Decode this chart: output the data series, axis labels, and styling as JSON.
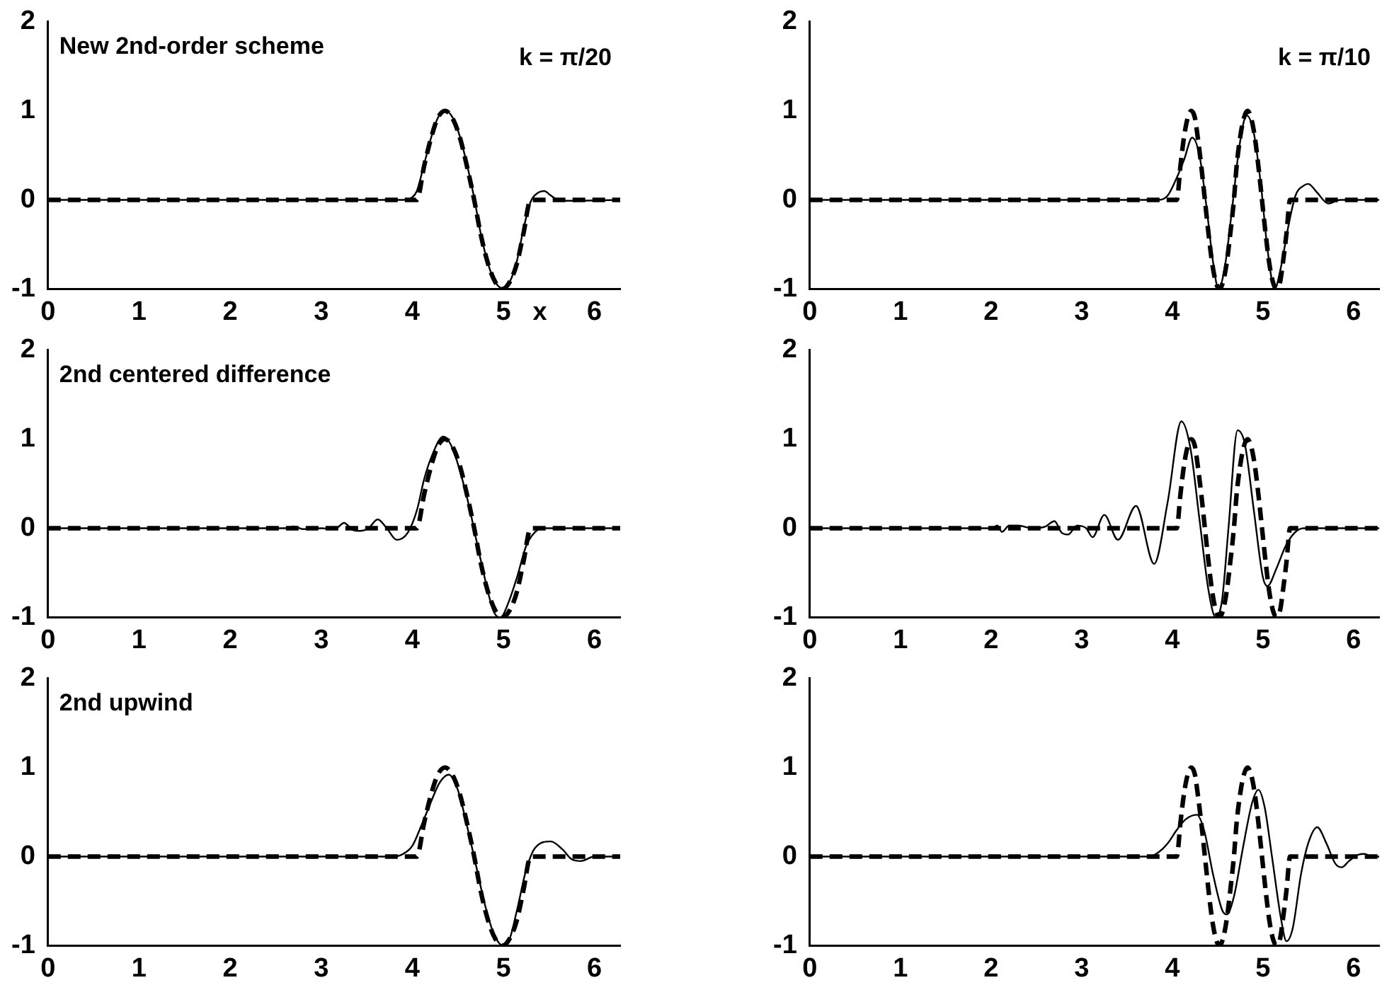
{
  "chart_data": [
    {
      "type": "line",
      "title": "New 2nd-order scheme",
      "xlabel": "x",
      "annotations": [
        "k = π/20"
      ],
      "xlim": [
        0,
        6.283
      ],
      "ylim": [
        -1,
        2
      ],
      "xticks": [
        0,
        1,
        2,
        3,
        4,
        5,
        6
      ],
      "yticks": [
        -1,
        0,
        1,
        2
      ],
      "marker": "none",
      "series": [
        {
          "color": "#000000",
          "line_style": "solid",
          "x": [
            0,
            3.9,
            4.0,
            4.05,
            4.13,
            4.21,
            4.28,
            4.36,
            4.44,
            4.52,
            4.6,
            4.68,
            4.75,
            4.83,
            4.91,
            4.99,
            5.07,
            5.15,
            5.22,
            5.3,
            5.38,
            5.45,
            5.52,
            5.6,
            5.7,
            6.283
          ],
          "values": [
            0,
            0,
            0.03,
            0.1,
            0.4,
            0.71,
            0.92,
            1,
            0.93,
            0.72,
            0.4,
            0.02,
            -0.37,
            -0.71,
            -0.92,
            -0.99,
            -0.92,
            -0.68,
            -0.33,
            -0.02,
            0.08,
            0.1,
            0.05,
            0,
            -0.01,
            0
          ]
        },
        {
          "color": "#000000",
          "line_style": "dashed",
          "x": [
            0,
            4.05,
            4.13,
            4.21,
            4.28,
            4.36,
            4.44,
            4.52,
            4.6,
            4.68,
            4.75,
            4.83,
            4.91,
            4.99,
            5.07,
            5.15,
            5.22,
            5.3,
            6.283
          ],
          "values": [
            0,
            0,
            0.38,
            0.71,
            0.92,
            1,
            0.92,
            0.71,
            0.38,
            0,
            -0.38,
            -0.71,
            -0.92,
            -1,
            -0.92,
            -0.71,
            -0.38,
            0,
            0
          ]
        }
      ]
    },
    {
      "type": "line",
      "annotations": [
        "k = π/10"
      ],
      "xlim": [
        0,
        6.283
      ],
      "ylim": [
        -1,
        2
      ],
      "xticks": [
        0,
        1,
        2,
        3,
        4,
        5,
        6
      ],
      "yticks": [
        -1,
        0,
        1,
        2
      ],
      "marker": "none",
      "series": [
        {
          "color": "#000000",
          "line_style": "solid",
          "x": [
            0,
            3.85,
            3.95,
            4.05,
            4.13,
            4.22,
            4.3,
            4.38,
            4.45,
            4.51,
            4.58,
            4.66,
            4.74,
            4.82,
            4.9,
            4.98,
            5.05,
            5.13,
            5.2,
            5.28,
            5.36,
            5.45,
            5.5,
            5.6,
            5.72,
            5.85,
            6.283
          ],
          "values": [
            0,
            0,
            0.05,
            0.25,
            0.45,
            0.7,
            0.5,
            -0.1,
            -0.7,
            -1,
            -0.75,
            -0.1,
            0.6,
            0.95,
            0.75,
            0.15,
            -0.55,
            -1,
            -0.75,
            -0.3,
            0.05,
            0.16,
            0.18,
            0.08,
            -0.04,
            0,
            0
          ]
        },
        {
          "color": "#000000",
          "line_style": "dashed",
          "x": [
            0,
            4.05,
            4.09,
            4.13,
            4.17,
            4.21,
            4.25,
            4.28,
            4.32,
            4.36,
            4.4,
            4.44,
            4.48,
            4.52,
            4.56,
            4.6,
            4.64,
            4.68,
            4.71,
            4.75,
            4.79,
            4.83,
            4.87,
            4.91,
            4.95,
            4.99,
            5.03,
            5.07,
            5.11,
            5.15,
            5.19,
            5.22,
            5.26,
            5.3,
            6.283
          ],
          "values": [
            0,
            0,
            0.38,
            0.71,
            0.92,
            1,
            0.92,
            0.71,
            0.38,
            0,
            -0.38,
            -0.71,
            -0.92,
            -1,
            -0.92,
            -0.71,
            -0.38,
            0,
            0.38,
            0.71,
            0.92,
            1,
            0.92,
            0.71,
            0.38,
            0,
            -0.38,
            -0.71,
            -0.92,
            -1,
            -0.92,
            -0.71,
            -0.38,
            0,
            0
          ]
        }
      ]
    },
    {
      "type": "line",
      "title": "2nd centered difference",
      "xlim": [
        0,
        6.283
      ],
      "ylim": [
        -1,
        2
      ],
      "xticks": [
        0,
        1,
        2,
        3,
        4,
        5,
        6
      ],
      "yticks": [
        -1,
        0,
        1,
        2
      ],
      "marker": "none",
      "series": [
        {
          "color": "#000000",
          "line_style": "solid",
          "x": [
            0,
            2.6,
            2.7,
            2.8,
            3.0,
            3.15,
            3.25,
            3.35,
            3.42,
            3.52,
            3.62,
            3.72,
            3.83,
            3.95,
            4.05,
            4.13,
            4.21,
            4.34,
            4.44,
            4.6,
            4.75,
            4.9,
            4.97,
            5.05,
            5.15,
            5.25,
            5.35,
            5.45,
            6.283
          ],
          "values": [
            0,
            0,
            0.02,
            -0.01,
            0,
            -0.01,
            0.06,
            -0.02,
            -0.03,
            0,
            0.1,
            0,
            -0.13,
            -0.05,
            0.2,
            0.55,
            0.8,
            1.03,
            0.9,
            0.35,
            -0.35,
            -0.95,
            -1,
            -0.85,
            -0.55,
            -0.2,
            -0.04,
            0,
            0
          ]
        },
        {
          "color": "#000000",
          "line_style": "dashed",
          "x": [
            0,
            4.05,
            4.13,
            4.21,
            4.28,
            4.36,
            4.44,
            4.52,
            4.6,
            4.68,
            4.75,
            4.83,
            4.91,
            4.99,
            5.07,
            5.15,
            5.22,
            5.3,
            6.283
          ],
          "values": [
            0,
            0,
            0.38,
            0.71,
            0.92,
            1,
            0.92,
            0.71,
            0.38,
            0,
            -0.38,
            -0.71,
            -0.92,
            -1,
            -0.92,
            -0.71,
            -0.38,
            0,
            0
          ]
        }
      ]
    },
    {
      "type": "line",
      "xlim": [
        0,
        6.283
      ],
      "ylim": [
        -1,
        2
      ],
      "xticks": [
        0,
        1,
        2,
        3,
        4,
        5,
        6
      ],
      "yticks": [
        -1,
        0,
        1,
        2
      ],
      "marker": "none",
      "series": [
        {
          "color": "#000000",
          "line_style": "solid",
          "x": [
            0,
            2.0,
            2.07,
            2.12,
            2.2,
            2.3,
            2.45,
            2.6,
            2.7,
            2.78,
            2.85,
            2.95,
            3.05,
            3.12,
            3.25,
            3.4,
            3.6,
            3.8,
            3.95,
            4.1,
            4.2,
            4.3,
            4.4,
            4.48,
            4.55,
            4.62,
            4.72,
            4.8,
            4.9,
            5.0,
            5.05,
            5.15,
            5.25,
            5.35,
            5.45,
            6.283
          ],
          "values": [
            0,
            0,
            0.03,
            -0.04,
            0.03,
            0.03,
            0,
            0.02,
            0.08,
            -0.05,
            -0.07,
            0.03,
            0,
            -0.1,
            0.15,
            -0.13,
            0.25,
            -0.4,
            0.3,
            1.2,
            0.9,
            0.1,
            -0.7,
            -1,
            -0.8,
            0,
            1.1,
            0.95,
            0.2,
            -0.55,
            -0.65,
            -0.45,
            -0.2,
            -0.05,
            0,
            0
          ]
        },
        {
          "color": "#000000",
          "line_style": "dashed",
          "x": [
            0,
            4.05,
            4.09,
            4.13,
            4.17,
            4.21,
            4.25,
            4.28,
            4.32,
            4.36,
            4.4,
            4.44,
            4.48,
            4.52,
            4.56,
            4.6,
            4.64,
            4.68,
            4.71,
            4.75,
            4.79,
            4.83,
            4.87,
            4.91,
            4.95,
            4.99,
            5.03,
            5.07,
            5.11,
            5.15,
            5.19,
            5.22,
            5.26,
            5.3,
            6.283
          ],
          "values": [
            0,
            0,
            0.38,
            0.71,
            0.92,
            1,
            0.92,
            0.71,
            0.38,
            0,
            -0.38,
            -0.71,
            -0.92,
            -1,
            -0.92,
            -0.71,
            -0.38,
            0,
            0.38,
            0.71,
            0.92,
            1,
            0.92,
            0.71,
            0.38,
            0,
            -0.38,
            -0.71,
            -0.92,
            -1,
            -0.92,
            -0.71,
            -0.38,
            0,
            0
          ]
        }
      ]
    },
    {
      "type": "line",
      "title": "2nd upwind",
      "xlim": [
        0,
        6.283
      ],
      "ylim": [
        -1,
        2
      ],
      "xticks": [
        0,
        1,
        2,
        3,
        4,
        5,
        6
      ],
      "yticks": [
        -1,
        0,
        1,
        2
      ],
      "marker": "none",
      "series": [
        {
          "color": "#000000",
          "line_style": "solid",
          "x": [
            0,
            3.8,
            3.9,
            4.0,
            4.1,
            4.2,
            4.3,
            4.4,
            4.5,
            4.6,
            4.7,
            4.8,
            4.9,
            5.0,
            5.07,
            5.15,
            5.25,
            5.35,
            5.52,
            5.65,
            5.75,
            5.85,
            6.0,
            6.283
          ],
          "values": [
            0,
            0,
            0.03,
            0.12,
            0.35,
            0.6,
            0.83,
            0.92,
            0.75,
            0.35,
            -0.1,
            -0.55,
            -0.88,
            -1,
            -0.92,
            -0.6,
            -0.15,
            0.1,
            0.17,
            0.08,
            -0.03,
            -0.05,
            0,
            0
          ]
        },
        {
          "color": "#000000",
          "line_style": "dashed",
          "x": [
            0,
            4.05,
            4.13,
            4.21,
            4.28,
            4.36,
            4.44,
            4.52,
            4.6,
            4.68,
            4.75,
            4.83,
            4.91,
            4.99,
            5.07,
            5.15,
            5.22,
            5.3,
            6.283
          ],
          "values": [
            0,
            0,
            0.38,
            0.71,
            0.92,
            1,
            0.92,
            0.71,
            0.38,
            0,
            -0.38,
            -0.71,
            -0.92,
            -1,
            -0.92,
            -0.71,
            -0.38,
            0,
            0
          ]
        }
      ]
    },
    {
      "type": "line",
      "xlim": [
        0,
        6.283
      ],
      "ylim": [
        -1,
        2
      ],
      "xticks": [
        0,
        1,
        2,
        3,
        4,
        5,
        6
      ],
      "yticks": [
        -1,
        0,
        1,
        2
      ],
      "marker": "none",
      "series": [
        {
          "color": "#000000",
          "line_style": "solid",
          "x": [
            0,
            3.75,
            3.85,
            3.95,
            4.05,
            4.15,
            4.27,
            4.35,
            4.45,
            4.55,
            4.6,
            4.68,
            4.78,
            4.88,
            4.95,
            5.02,
            5.1,
            5.2,
            5.26,
            5.33,
            5.42,
            5.5,
            5.6,
            5.7,
            5.8,
            5.87,
            5.95,
            6.05,
            6.12,
            6.2,
            6.283
          ],
          "values": [
            0,
            0,
            0.05,
            0.15,
            0.3,
            0.42,
            0.47,
            0.3,
            -0.2,
            -0.6,
            -0.65,
            -0.45,
            0.1,
            0.6,
            0.75,
            0.55,
            0,
            -0.7,
            -0.95,
            -0.8,
            -0.2,
            0.15,
            0.33,
            0.15,
            -0.08,
            -0.12,
            -0.05,
            0.02,
            0.03,
            0,
            0
          ]
        },
        {
          "color": "#000000",
          "line_style": "dashed",
          "x": [
            0,
            4.05,
            4.09,
            4.13,
            4.17,
            4.21,
            4.25,
            4.28,
            4.32,
            4.36,
            4.4,
            4.44,
            4.48,
            4.52,
            4.56,
            4.6,
            4.64,
            4.68,
            4.71,
            4.75,
            4.79,
            4.83,
            4.87,
            4.91,
            4.95,
            4.99,
            5.03,
            5.07,
            5.11,
            5.15,
            5.19,
            5.22,
            5.26,
            5.3,
            6.283
          ],
          "values": [
            0,
            0,
            0.38,
            0.71,
            0.92,
            1,
            0.92,
            0.71,
            0.38,
            0,
            -0.38,
            -0.71,
            -0.92,
            -1,
            -0.92,
            -0.71,
            -0.38,
            0,
            0.38,
            0.71,
            0.92,
            1,
            0.92,
            0.71,
            0.38,
            0,
            -0.38,
            -0.71,
            -0.92,
            -1,
            -0.92,
            -0.71,
            -0.38,
            0,
            0
          ]
        }
      ]
    }
  ]
}
